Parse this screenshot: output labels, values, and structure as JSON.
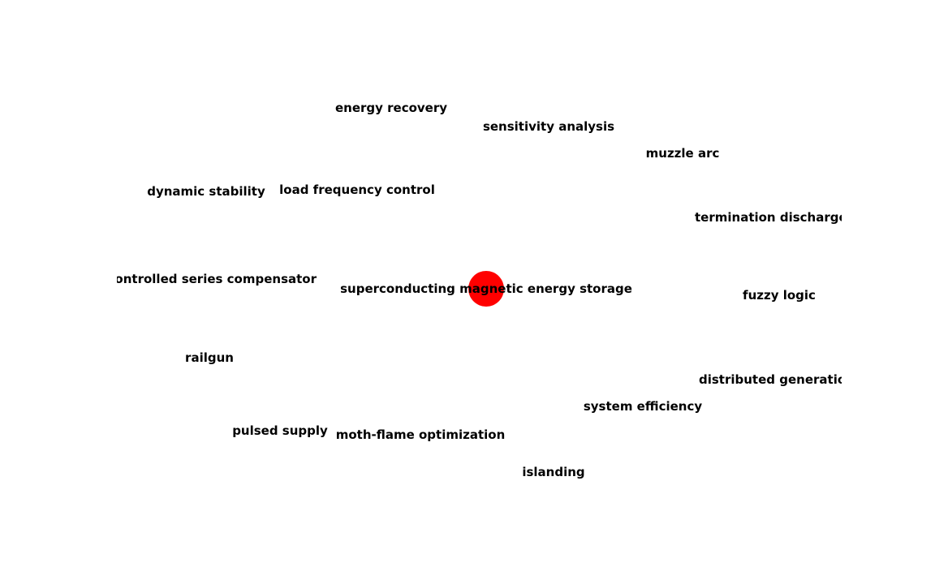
{
  "graph": {
    "center": {
      "label": "superconducting magnetic energy storage",
      "color": "#ff0000"
    },
    "neighbors": [
      {
        "id": "energy-recovery",
        "label": "energy recovery"
      },
      {
        "id": "sensitivity-analysis",
        "label": "sensitivity analysis"
      },
      {
        "id": "muzzle-arc",
        "label": "muzzle arc"
      },
      {
        "id": "dynamic-stability",
        "label": "dynamic stability"
      },
      {
        "id": "load-frequency-control",
        "label": "load frequency control"
      },
      {
        "id": "termination-discharge",
        "label": "termination discharge"
      },
      {
        "id": "controlled-series-compensator",
        "label": "controlled series compensator"
      },
      {
        "id": "fuzzy-logic",
        "label": "fuzzy logic"
      },
      {
        "id": "railgun",
        "label": "railgun"
      },
      {
        "id": "distributed-generation",
        "label": "distributed generation"
      },
      {
        "id": "system-efficiency",
        "label": "system efficiency"
      },
      {
        "id": "pulsed-supply",
        "label": "pulsed supply"
      },
      {
        "id": "moth-flame-optimization",
        "label": "moth-flame optimization"
      },
      {
        "id": "islanding",
        "label": "islanding"
      }
    ]
  }
}
